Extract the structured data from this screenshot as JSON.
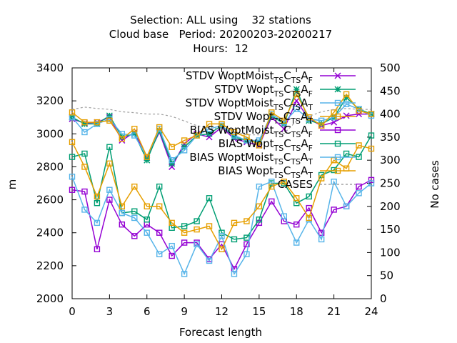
{
  "chart_data": {
    "type": "line",
    "title": [
      "Selection: ALL using    32 stations",
      "Cloud base   Period: 20200203-20200217",
      "Hours:  12"
    ],
    "xlabel": "Forecast length",
    "ylabel": "m",
    "y2label": "No cases",
    "xlim": [
      0,
      24
    ],
    "ylim": [
      2000,
      3400
    ],
    "y2lim": [
      0,
      500
    ],
    "xticks": [
      "0",
      "3",
      "6",
      "9",
      "12",
      "15",
      "18",
      "21",
      "24"
    ],
    "yticks": [
      "2000",
      "2200",
      "2400",
      "2600",
      "2800",
      "3000",
      "3200",
      "3400"
    ],
    "y2ticks": [
      "0",
      "50",
      "100",
      "150",
      "200",
      "250",
      "300",
      "350",
      "400",
      "450",
      "500"
    ],
    "grid": false,
    "legend_position": "top-right",
    "x": [
      0,
      1,
      2,
      3,
      4,
      5,
      6,
      7,
      8,
      9,
      10,
      11,
      12,
      13,
      14,
      15,
      16,
      17,
      18,
      19,
      20,
      21,
      22,
      23,
      24
    ],
    "series": [
      {
        "label": "STDV WoptMoist",
        "sub1": "TS",
        "mid": "C",
        "sub2": "TS",
        "end": "A",
        "sub3": "F",
        "color": "#9400d3",
        "marker": "x",
        "axis": "y",
        "values": [
          3090,
          3065,
          3070,
          3100,
          2960,
          3010,
          2855,
          3010,
          2800,
          2940,
          3000,
          2980,
          3040,
          2970,
          2950,
          2930,
          3100,
          3030,
          3200,
          3090,
          3050,
          3070,
          3110,
          3120,
          3120
        ]
      },
      {
        "label": "STDV Wopt",
        "sub1": "TS",
        "mid": "C",
        "sub2": "TS",
        "end": "A",
        "sub3": "F",
        "color": "#009e73",
        "marker": "star",
        "axis": "y",
        "values": [
          3100,
          3060,
          3060,
          3110,
          2980,
          3000,
          2840,
          3020,
          2820,
          2920,
          2990,
          3000,
          3050,
          2980,
          2960,
          2950,
          3110,
          3060,
          3270,
          3080,
          3060,
          3100,
          3220,
          3150,
          3120
        ]
      },
      {
        "label": "STDV WoptMoist",
        "sub1": "TS",
        "mid": "C",
        "sub2": "TS",
        "end": "A",
        "sub3": "T",
        "color": "#56b4e9",
        "marker": "box",
        "axis": "y",
        "values": [
          3100,
          3010,
          3060,
          3090,
          3000,
          2990,
          2860,
          3030,
          2840,
          2900,
          2990,
          3030,
          3050,
          2990,
          2960,
          2960,
          3120,
          3070,
          3150,
          3090,
          3080,
          3100,
          3180,
          3150,
          3110
        ]
      },
      {
        "label": "STDV Wopt",
        "sub1": "TS",
        "mid": "C",
        "sub2": "TS",
        "end": "A",
        "sub3": "T",
        "color": "#e69f00",
        "marker": "box",
        "axis": "y",
        "values": [
          3130,
          3070,
          3070,
          3080,
          2970,
          3030,
          2860,
          3040,
          2920,
          2960,
          2990,
          3060,
          3060,
          3010,
          2980,
          2930,
          3130,
          3080,
          3240,
          3100,
          3050,
          3130,
          3240,
          3140,
          3120
        ]
      },
      {
        "label": "BIAS WoptMoist",
        "sub1": "TS",
        "mid": "C",
        "sub2": "TS",
        "end": "A",
        "sub3": "F",
        "color": "#9400d3",
        "marker": "box",
        "axis": "y",
        "values": [
          2660,
          2650,
          2300,
          2600,
          2450,
          2380,
          2450,
          2400,
          2260,
          2340,
          2340,
          2240,
          2330,
          2180,
          2330,
          2460,
          2590,
          2470,
          2450,
          2550,
          2400,
          2540,
          2560,
          2680,
          2720
        ]
      },
      {
        "label": "BIAS Wopt",
        "sub1": "TS",
        "mid": "C",
        "sub2": "TS",
        "end": "A",
        "sub3": "F",
        "color": "#009e73",
        "marker": "box",
        "axis": "y",
        "values": [
          2860,
          2880,
          2580,
          2920,
          2520,
          2530,
          2480,
          2680,
          2430,
          2440,
          2470,
          2610,
          2400,
          2360,
          2370,
          2480,
          2700,
          2700,
          2580,
          2620,
          2750,
          2780,
          2880,
          2860,
          2990
        ]
      },
      {
        "label": "BIAS WoptMoist",
        "sub1": "TS",
        "mid": "C",
        "sub2": "TS",
        "end": "A",
        "sub3": "T",
        "color": "#56b4e9",
        "marker": "box",
        "axis": "y",
        "values": [
          2740,
          2540,
          2460,
          2660,
          2520,
          2490,
          2400,
          2270,
          2320,
          2150,
          2330,
          2230,
          2380,
          2150,
          2270,
          2680,
          2710,
          2500,
          2340,
          2480,
          2360,
          2710,
          2560,
          2640,
          2700
        ]
      },
      {
        "label": "BIAS Wopt",
        "sub1": "TS",
        "mid": "C",
        "sub2": "TS",
        "end": "A",
        "sub3": "T",
        "color": "#e69f00",
        "marker": "box",
        "axis": "y",
        "values": [
          2950,
          2800,
          2620,
          2820,
          2560,
          2680,
          2560,
          2560,
          2460,
          2400,
          2420,
          2440,
          2300,
          2460,
          2470,
          2560,
          2680,
          2710,
          2610,
          2490,
          2730,
          2840,
          2790,
          2930,
          2910
        ]
      },
      {
        "label": "CASES",
        "color": "#a0a0a0",
        "dashed": true,
        "axis": "y2",
        "values": [
          410,
          415,
          412,
          410,
          405,
          403,
          400,
          400,
          395,
          385,
          375,
          370,
          368,
          362,
          355,
          355,
          360,
          358,
          385,
          395,
          405,
          410,
          412,
          410,
          410
        ]
      }
    ]
  }
}
